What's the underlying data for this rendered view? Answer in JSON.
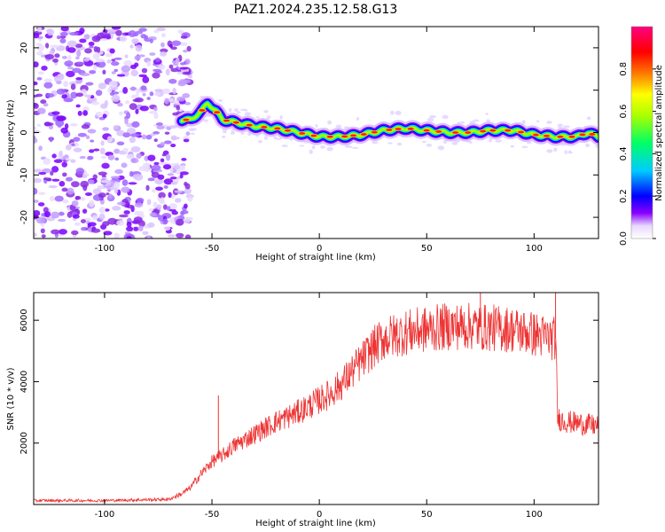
{
  "title": "PAZ1.2024.235.12.58.G13",
  "chart_data": [
    {
      "type": "heatmap",
      "xlabel": "Height of straight line (km)",
      "ylabel": "Frequency (Hz)",
      "xlim": [
        -133,
        130
      ],
      "ylim": [
        -25,
        25
      ],
      "xticks": [
        -100,
        -50,
        0,
        50,
        100
      ],
      "yticks": [
        -20,
        -10,
        0,
        10,
        20
      ],
      "colorbar": {
        "label": "Normalized spectral amplitude",
        "range": [
          0,
          1
        ],
        "ticks": [
          0.0,
          0.2,
          0.4,
          0.6,
          0.8
        ],
        "colors": [
          "#ffffff",
          "#8a00ff",
          "#0000ff",
          "#00ccff",
          "#00ff66",
          "#aaff00",
          "#ffff00",
          "#ff7700",
          "#ff0000",
          "#ff0080"
        ]
      },
      "noise_region_x": [
        -133,
        -64
      ],
      "signal_ridge": {
        "x": [
          -64,
          -60,
          -55,
          -52,
          -48,
          -45,
          -40,
          -30,
          -20,
          -10,
          0,
          10,
          20,
          30,
          40,
          50,
          60,
          70,
          80,
          90,
          100,
          110,
          120,
          125,
          130
        ],
        "freq_hz": [
          3,
          3,
          5,
          7,
          5,
          3,
          2.5,
          1.5,
          1,
          0,
          -1,
          -1,
          -0.5,
          0.5,
          1,
          0.5,
          0,
          0,
          0.5,
          0.5,
          -0.5,
          -1,
          -1,
          0,
          -1
        ]
      }
    },
    {
      "type": "line",
      "xlabel": "Height of straight line (km)",
      "ylabel": "SNR (10 * v/v)",
      "xlim": [
        -133,
        130
      ],
      "ylim": [
        0,
        6900
      ],
      "xticks": [
        -100,
        -50,
        0,
        50,
        100
      ],
      "yticks": [
        2000,
        4000,
        6000
      ],
      "color": "#ee3333",
      "series_envelope": {
        "x": [
          -133,
          -100,
          -70,
          -64,
          -60,
          -55,
          -50,
          -45,
          -40,
          -30,
          -20,
          -10,
          0,
          5,
          10,
          15,
          20,
          25,
          30,
          40,
          50,
          60,
          70,
          80,
          90,
          100,
          105,
          110,
          111,
          115,
          120,
          125,
          130
        ],
        "snr": [
          130,
          130,
          170,
          350,
          550,
          1000,
          1400,
          1600,
          1900,
          2300,
          2700,
          3000,
          3400,
          3600,
          3900,
          4300,
          4700,
          5100,
          5400,
          5600,
          5700,
          5800,
          5800,
          5750,
          5700,
          5550,
          5450,
          5400,
          2800,
          2700,
          2650,
          2600,
          2550
        ]
      },
      "noise_amplitude_fraction": 0.13,
      "spikes": [
        {
          "x": -47,
          "snr": 3550
        },
        {
          "x": 75,
          "snr": 6900
        },
        {
          "x": 110,
          "snr": 6900
        }
      ]
    }
  ]
}
